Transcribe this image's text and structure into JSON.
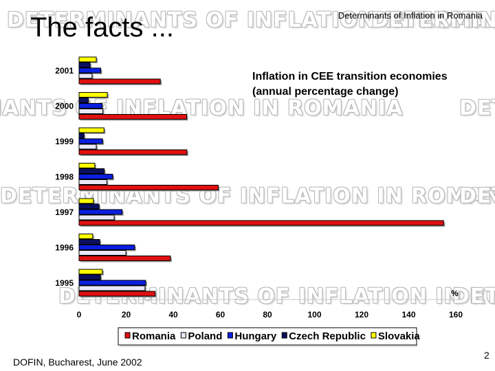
{
  "header": {
    "title": "The facts ...",
    "right_text": "Determinants of Inflation in Romania"
  },
  "watermark": {
    "text": "DETERMINANTS OF INFLATION IN ROMANIA"
  },
  "footer": {
    "left_text": "DOFIN, Bucharest, June 2002",
    "page_number": "2"
  },
  "chart_data": {
    "type": "bar",
    "orientation": "horizontal",
    "title": "Inflation in CEE transition economies (annual percentage change)",
    "unit_label": "%",
    "categories": [
      "2001",
      "2000",
      "1999",
      "1998",
      "1997",
      "1996",
      "1995"
    ],
    "series": [
      {
        "name": "Romania",
        "color": "#e01010",
        "values": [
          34.5,
          45.7,
          45.8,
          59.1,
          154.8,
          38.8,
          32.3
        ]
      },
      {
        "name": "Poland",
        "color": "#e8e8f8",
        "values": [
          5.5,
          10.1,
          7.3,
          11.8,
          14.9,
          19.9,
          28.0
        ]
      },
      {
        "name": "Hungary",
        "color": "#0a1fe0",
        "values": [
          9.2,
          9.8,
          10.0,
          14.3,
          18.3,
          23.6,
          28.3
        ]
      },
      {
        "name": "Czech Republic",
        "color": "#0a1060",
        "values": [
          4.7,
          3.9,
          2.1,
          10.7,
          8.5,
          8.8,
          9.1
        ]
      },
      {
        "name": "Slovakia",
        "color": "#ffff00",
        "values": [
          7.3,
          12.0,
          10.6,
          6.7,
          6.1,
          5.8,
          9.9
        ]
      }
    ],
    "xlim": [
      0,
      160
    ],
    "x_ticks": [
      0,
      20,
      40,
      60,
      80,
      100,
      120,
      140,
      160
    ],
    "grid": false,
    "legend_position": "bottom"
  }
}
